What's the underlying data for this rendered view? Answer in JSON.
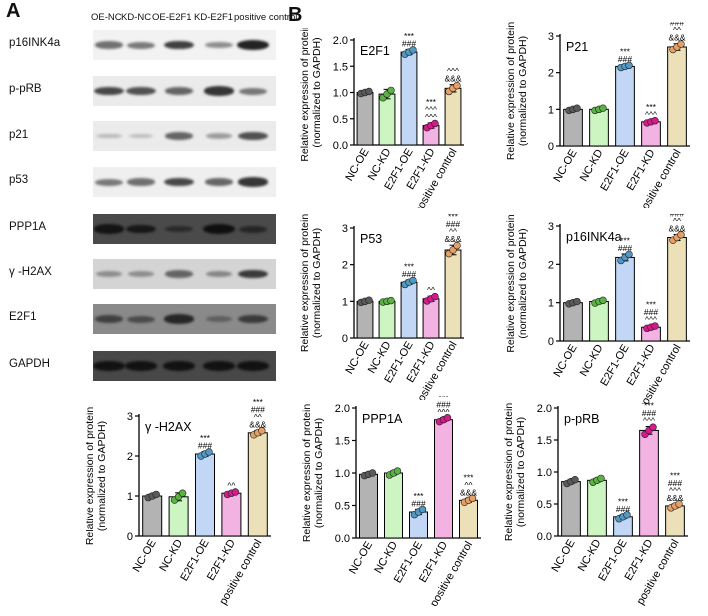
{
  "panel_a_letter": "A",
  "panel_b_letter": "B",
  "western_blot": {
    "lanes": [
      "OE-NC",
      "KD-NC",
      "OE-E2F1",
      "KD-E2F1",
      "positive control"
    ],
    "rows": [
      {
        "label": "p16INK4a",
        "background": "#f2f2f2",
        "bands": [
          0.55,
          0.5,
          0.8,
          0.4,
          0.95
        ]
      },
      {
        "label": "p-pRB",
        "background": "#ebebeb",
        "bands": [
          0.75,
          0.7,
          0.6,
          0.85,
          0.5
        ]
      },
      {
        "label": "p21",
        "background": "#ebebeb",
        "bands": [
          0.15,
          0.12,
          0.6,
          0.3,
          0.7
        ]
      },
      {
        "label": "p53",
        "background": "#efefef",
        "bands": [
          0.5,
          0.55,
          0.75,
          0.6,
          0.85
        ]
      },
      {
        "label": "PPP1A",
        "background": "#4a4a4a",
        "bands": [
          0.85,
          0.8,
          0.4,
          0.95,
          0.5
        ]
      },
      {
        "label": "γ -H2AX",
        "background": "#d4d4d4",
        "bands": [
          0.3,
          0.3,
          0.55,
          0.35,
          0.8
        ]
      },
      {
        "label": "E2F1",
        "background": "#8a8a8a",
        "bands": [
          0.6,
          0.5,
          0.85,
          0.3,
          0.65
        ]
      },
      {
        "label": "GAPDH",
        "background": "#484848",
        "bands": [
          0.9,
          0.9,
          0.9,
          0.9,
          0.9
        ]
      }
    ]
  },
  "chart_data": [
    {
      "type": "bar",
      "title": "E2F1",
      "ylabel": "Relative expression of protein (normalized to GAPDH)",
      "categories": [
        "NC-OE",
        "NC-KD",
        "E2F1-OE",
        "E2F1-KD",
        "positive control"
      ],
      "values": [
        1.0,
        0.97,
        1.77,
        0.37,
        1.08
      ],
      "errors": [
        0.03,
        0.09,
        0.05,
        0.05,
        0.07
      ],
      "points": [
        [
          0.98,
          1.0,
          1.02
        ],
        [
          0.9,
          0.97,
          1.04
        ],
        [
          1.73,
          1.77,
          1.81
        ],
        [
          0.33,
          0.37,
          0.41
        ],
        [
          1.02,
          1.08,
          1.13
        ]
      ],
      "ylim": [
        0,
        2
      ],
      "yticks": [
        0,
        0.5,
        1.0,
        1.5,
        2.0
      ],
      "tick_labels": [
        "0.0",
        "0.5",
        "1.0",
        "1.5",
        "2.0"
      ],
      "annotations": [
        [],
        [],
        [
          "***",
          "###"
        ],
        [
          "***",
          "^^^",
          "^^^"
        ],
        [
          "^^^",
          "&&&"
        ]
      ]
    },
    {
      "type": "bar",
      "title": "P21",
      "ylabel": "Relative expression of protein (normalized to GAPDH)",
      "categories": [
        "NC-OE",
        "NC-KD",
        "E2F1-OE",
        "E2F1-KD",
        "positive control"
      ],
      "values": [
        1.0,
        1.0,
        2.17,
        0.66,
        2.7
      ],
      "errors": [
        0.04,
        0.04,
        0.04,
        0.04,
        0.09
      ],
      "points": [
        [
          0.97,
          1.0,
          1.03
        ],
        [
          0.97,
          1.0,
          1.03
        ],
        [
          2.14,
          2.17,
          2.2
        ],
        [
          0.63,
          0.66,
          0.69
        ],
        [
          2.63,
          2.7,
          2.78
        ]
      ],
      "ylim": [
        0,
        3
      ],
      "yticks": [
        0,
        1,
        2,
        3
      ],
      "tick_labels": [
        "0",
        "1",
        "2",
        "3"
      ],
      "annotations": [
        [],
        [],
        [
          "***",
          "###"
        ],
        [
          "***",
          "^^^"
        ],
        [
          "***",
          "###",
          "^^",
          "&&&"
        ]
      ]
    },
    {
      "type": "bar",
      "title": "P53",
      "ylabel": "Relative expression of protein (normalized to GAPDH)",
      "categories": [
        "NC-OE",
        "NC-KD",
        "E2F1-OE",
        "E2F1-KD",
        "positive control"
      ],
      "values": [
        1.0,
        1.0,
        1.52,
        1.07,
        2.4
      ],
      "errors": [
        0.04,
        0.03,
        0.06,
        0.07,
        0.13
      ],
      "points": [
        [
          0.97,
          1.0,
          1.03
        ],
        [
          0.98,
          1.0,
          1.02
        ],
        [
          1.46,
          1.52,
          1.57
        ],
        [
          1.01,
          1.07,
          1.13
        ],
        [
          2.3,
          2.4,
          2.52
        ]
      ],
      "ylim": [
        0,
        3
      ],
      "yticks": [
        0,
        1,
        2,
        3
      ],
      "tick_labels": [
        "0",
        "1",
        "2",
        "3"
      ],
      "annotations": [
        [],
        [],
        [
          "***",
          "###"
        ],
        [
          "^^"
        ],
        [
          "***",
          "###",
          "^^",
          "&&&"
        ]
      ]
    },
    {
      "type": "bar",
      "title": "p16INK4a",
      "ylabel": "Relative expression of protein (normalized to GAPDH)",
      "categories": [
        "NC-OE",
        "NC-KD",
        "E2F1-OE",
        "E2F1-KD",
        "positive control"
      ],
      "values": [
        1.0,
        1.03,
        2.18,
        0.36,
        2.7
      ],
      "errors": [
        0.04,
        0.04,
        0.09,
        0.04,
        0.08
      ],
      "points": [
        [
          0.97,
          1.0,
          1.03
        ],
        [
          0.99,
          1.03,
          1.06
        ],
        [
          2.1,
          2.18,
          2.26
        ],
        [
          0.33,
          0.36,
          0.39
        ],
        [
          2.63,
          2.7,
          2.77
        ]
      ],
      "ylim": [
        0,
        3
      ],
      "yticks": [
        0,
        1,
        2,
        3
      ],
      "tick_labels": [
        "0",
        "1",
        "2",
        "3"
      ],
      "annotations": [
        [],
        [],
        [
          "***",
          "###"
        ],
        [
          "***",
          "###",
          "^^^"
        ],
        [
          "***",
          "###",
          "^^",
          "&&&"
        ]
      ]
    },
    {
      "type": "bar",
      "title": "γ -H2AX",
      "ylabel": "Relative expression of protein (normalized to GAPDH)",
      "categories": [
        "NC-OE",
        "NC-KD",
        "E2F1-OE",
        "E2F1-KD",
        "positive control"
      ],
      "values": [
        1.0,
        0.98,
        2.05,
        1.07,
        2.58
      ],
      "errors": [
        0.05,
        0.1,
        0.06,
        0.04,
        0.06
      ],
      "points": [
        [
          0.96,
          1.0,
          1.04
        ],
        [
          0.9,
          0.98,
          1.07
        ],
        [
          2.0,
          2.05,
          2.1
        ],
        [
          1.04,
          1.07,
          1.1
        ],
        [
          2.53,
          2.58,
          2.63
        ]
      ],
      "ylim": [
        0,
        3
      ],
      "yticks": [
        0,
        1,
        2,
        3
      ],
      "tick_labels": [
        "0",
        "1",
        "2",
        "3"
      ],
      "annotations": [
        [],
        [],
        [
          "***",
          "###"
        ],
        [
          "^^"
        ],
        [
          "***",
          "###",
          "^^",
          "&&&"
        ]
      ]
    },
    {
      "type": "bar",
      "title": "PPP1A",
      "ylabel": "Relative expression of protein (normalized to GAPDH)",
      "categories": [
        "NC-OE",
        "NC-KD",
        "E2F1-OE",
        "E2F1-KD",
        "positive control"
      ],
      "values": [
        0.98,
        1.0,
        0.4,
        1.82,
        0.58
      ],
      "errors": [
        0.02,
        0.03,
        0.04,
        0.03,
        0.03
      ],
      "points": [
        [
          0.96,
          0.98,
          1.0
        ],
        [
          0.97,
          1.0,
          1.03
        ],
        [
          0.36,
          0.4,
          0.44
        ],
        [
          1.79,
          1.82,
          1.85
        ],
        [
          0.55,
          0.58,
          0.61
        ]
      ],
      "ylim": [
        0,
        2
      ],
      "yticks": [
        0,
        0.5,
        1.0,
        1.5,
        2.0
      ],
      "tick_labels": [
        "0.0",
        "0.5",
        "1.0",
        "1.5",
        "2.0"
      ],
      "annotations": [
        [],
        [],
        [
          "***",
          "###"
        ],
        [
          "***",
          "###",
          "^^^"
        ],
        [
          "***",
          "^^",
          "&&&"
        ]
      ]
    },
    {
      "type": "bar",
      "title": "p-pRB",
      "ylabel": "Relative expression of protein (normalized to GAPDH)",
      "categories": [
        "NC-OE",
        "NC-KD",
        "E2F1-OE",
        "E2F1-KD",
        "positive control"
      ],
      "values": [
        0.85,
        0.87,
        0.3,
        1.65,
        0.47
      ],
      "errors": [
        0.03,
        0.03,
        0.03,
        0.06,
        0.03
      ],
      "points": [
        [
          0.82,
          0.85,
          0.88
        ],
        [
          0.84,
          0.87,
          0.9
        ],
        [
          0.27,
          0.3,
          0.33
        ],
        [
          1.59,
          1.65,
          1.7
        ],
        [
          0.44,
          0.47,
          0.5
        ]
      ],
      "ylim": [
        0,
        2
      ],
      "yticks": [
        0,
        0.5,
        1.0,
        1.5,
        2.0
      ],
      "tick_labels": [
        "0.0",
        "0.5",
        "1.0",
        "1.5",
        "2.0"
      ],
      "annotations": [
        [],
        [],
        [
          "***",
          "###"
        ],
        [
          "***",
          "###",
          "^^^"
        ],
        [
          "***",
          "###",
          "^^^",
          "&&&"
        ]
      ]
    }
  ],
  "colors": {
    "bar_fills": [
      "#b3b3b3",
      "#ccf5c2",
      "#c2d6f5",
      "#f2b3e3",
      "#ebe0b8"
    ],
    "point_fills": [
      "#5a5a5a",
      "#59b340",
      "#4f99c4",
      "#d61a8c",
      "#e6a066"
    ]
  }
}
